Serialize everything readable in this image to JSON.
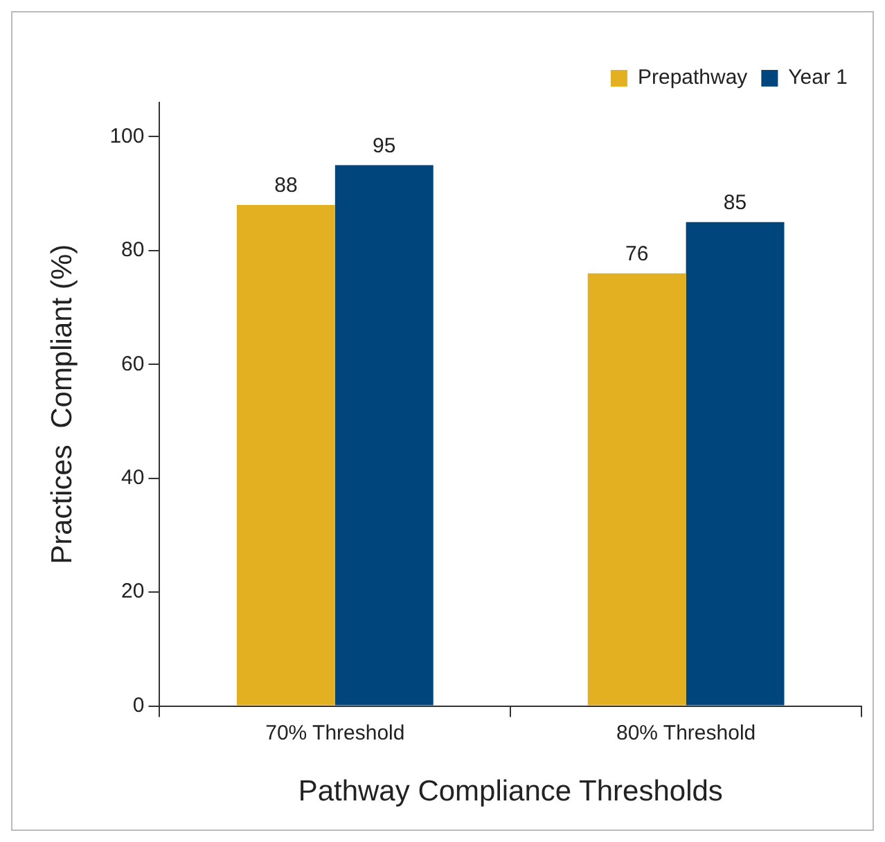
{
  "chart_data": {
    "type": "bar",
    "xlabel": "Pathway Compliance Thresholds",
    "ylabel": "Practices  Compliant (%)",
    "categories": [
      "70% Threshold",
      "80% Threshold"
    ],
    "series": [
      {
        "name": "Prepathway",
        "color": "#e3b022",
        "values": [
          88,
          76
        ]
      },
      {
        "name": "Year 1",
        "color": "#00457c",
        "values": [
          95,
          85
        ]
      }
    ],
    "ylim": [
      0,
      106
    ],
    "yticks": [
      0,
      20,
      40,
      60,
      80,
      100
    ],
    "grid": false,
    "legend": "top right",
    "data_labels": true
  }
}
